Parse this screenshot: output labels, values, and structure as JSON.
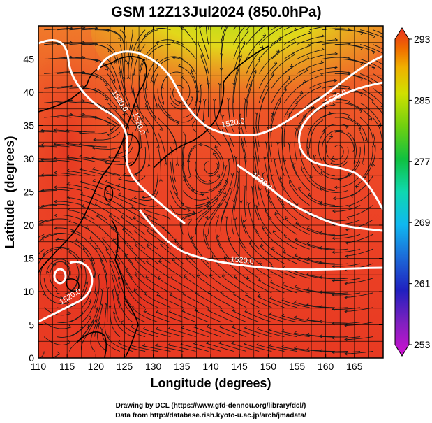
{
  "title": "GSM 12Z13Jul2024 (850.0hPa)",
  "credits": {
    "line1": "Drawing by DCL (https://www.gfd-dennou.org/library/dcl/)",
    "line2": "Data from http://database.rish.kyoto-u.ac.jp/arch/jmadata/"
  },
  "chart_data": {
    "type": "heatmap",
    "xlabel": "Longitude (degrees)",
    "ylabel": "Latitude  (degrees)",
    "xlim": [
      110,
      170
    ],
    "ylim": [
      0,
      50
    ],
    "x_ticks": [
      110,
      115,
      120,
      125,
      130,
      135,
      140,
      145,
      150,
      155,
      160,
      165
    ],
    "y_ticks": [
      0,
      5,
      10,
      15,
      20,
      25,
      30,
      35,
      40,
      45
    ],
    "grid": true,
    "colorbar": {
      "vmin": 253,
      "vmax": 293,
      "labels": [
        293,
        285,
        277,
        269,
        261,
        253
      ],
      "colors": [
        "#d010d0",
        "#8020c0",
        "#2020c0",
        "#1c6ad8",
        "#10b8f0",
        "#10d8b0",
        "#10c040",
        "#70d010",
        "#d0e000",
        "#f0b000",
        "#f06a00",
        "#e83020"
      ]
    },
    "contour_labels": [
      "1520.0",
      "1520.0",
      "1520.0",
      "1520.0",
      "1520.0",
      "1520.0",
      "1520.0"
    ],
    "features": {
      "high_center": [
        162,
        31
      ],
      "low_centers": [
        [
          135,
          40
        ],
        [
          141,
          29
        ],
        [
          114,
          13
        ]
      ]
    }
  }
}
